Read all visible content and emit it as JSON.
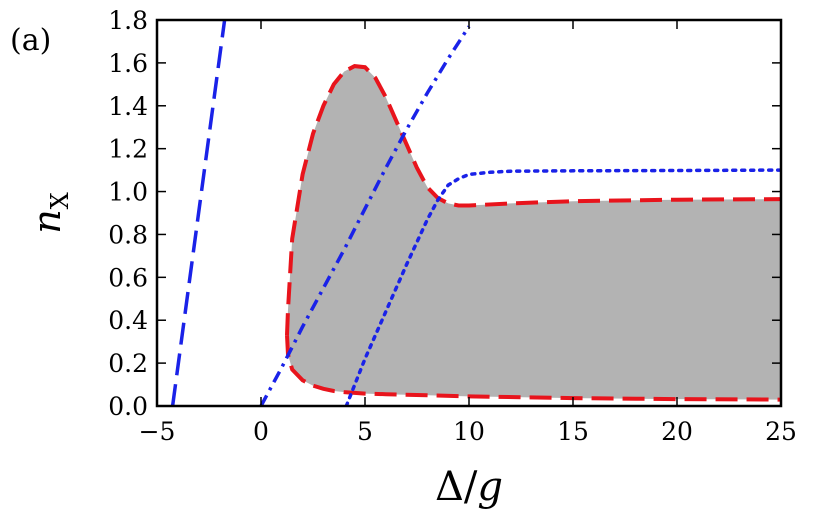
{
  "panel_label": "(a)",
  "chart_data": {
    "type": "area",
    "xlabel": "Δ/g",
    "ylabel": "n_X",
    "xlim": [
      -5,
      25
    ],
    "ylim": [
      0,
      1.8
    ],
    "xticks": [
      -5,
      0,
      5,
      10,
      15,
      20,
      25
    ],
    "xtick_labels": [
      "−5",
      "0",
      "5",
      "10",
      "15",
      "20",
      "25"
    ],
    "yticks": [
      0.0,
      0.2,
      0.4,
      0.6,
      0.8,
      1.0,
      1.2,
      1.4,
      1.6,
      1.8
    ],
    "ytick_labels": [
      "0.0",
      "0.2",
      "0.4",
      "0.6",
      "0.8",
      "1.0",
      "1.2",
      "1.4",
      "1.6",
      "1.8"
    ],
    "grid": false,
    "series": [
      {
        "style": "filled-region",
        "color": "#b3b3b3",
        "upper": {
          "x": [
            1.25,
            1.3,
            1.5,
            2.0,
            2.5,
            3.0,
            3.5,
            4.0,
            4.5,
            5.0,
            5.5,
            6.0,
            6.5,
            7.0,
            7.5,
            8.0,
            8.5,
            9.0,
            9.5,
            10.0,
            12.0,
            15.0,
            20.0,
            25.0
          ],
          "y": [
            0.33,
            0.45,
            0.78,
            1.08,
            1.27,
            1.4,
            1.5,
            1.56,
            1.585,
            1.58,
            1.53,
            1.44,
            1.33,
            1.22,
            1.11,
            1.02,
            0.97,
            0.945,
            0.935,
            0.935,
            0.945,
            0.955,
            0.962,
            0.965
          ]
        },
        "lower": {
          "x": [
            1.25,
            1.3,
            1.5,
            2.0,
            2.5,
            3.0,
            3.5,
            4.0,
            5.0,
            6.0,
            8.0,
            10.0,
            15.0,
            20.0,
            25.0
          ],
          "y": [
            0.33,
            0.24,
            0.17,
            0.12,
            0.095,
            0.08,
            0.07,
            0.065,
            0.058,
            0.055,
            0.05,
            0.045,
            0.037,
            0.032,
            0.03
          ]
        }
      },
      {
        "style": "dashed",
        "color": "#e8141c",
        "x": [
          1.25,
          1.3,
          1.5,
          2.0,
          2.5,
          3.0,
          3.5,
          4.0,
          4.5,
          5.0,
          5.5,
          6.0,
          6.5,
          7.0,
          7.5,
          8.0,
          8.5,
          9.0,
          9.5,
          10.0,
          12.0,
          15.0,
          20.0,
          25.0
        ],
        "y": [
          0.33,
          0.45,
          0.78,
          1.08,
          1.27,
          1.4,
          1.5,
          1.56,
          1.585,
          1.58,
          1.53,
          1.44,
          1.33,
          1.22,
          1.11,
          1.02,
          0.97,
          0.945,
          0.935,
          0.935,
          0.945,
          0.955,
          0.962,
          0.965
        ]
      },
      {
        "style": "dashed",
        "color": "#e8141c",
        "x": [
          1.25,
          1.3,
          1.5,
          2.0,
          2.5,
          3.0,
          3.5,
          4.0,
          5.0,
          6.0,
          8.0,
          10.0,
          15.0,
          20.0,
          25.0
        ],
        "y": [
          0.33,
          0.24,
          0.17,
          0.12,
          0.095,
          0.08,
          0.07,
          0.065,
          0.058,
          0.055,
          0.05,
          0.045,
          0.037,
          0.032,
          0.03
        ]
      },
      {
        "style": "dashed",
        "color": "#1a22e8",
        "x": [
          -4.25,
          -1.75
        ],
        "y": [
          0.0,
          1.8
        ]
      },
      {
        "style": "dashdot",
        "color": "#1a22e8",
        "x": [
          0.0,
          1.0,
          2.0,
          3.0,
          4.0,
          5.0,
          6.0,
          7.0,
          8.0,
          9.0,
          10.0
        ],
        "y": [
          0.0,
          0.18,
          0.37,
          0.55,
          0.73,
          0.92,
          1.11,
          1.29,
          1.46,
          1.62,
          1.77
        ]
      },
      {
        "style": "dotted",
        "color": "#1a22e8",
        "x": [
          4.1,
          5.0,
          6.0,
          7.0,
          8.0,
          8.5,
          9.0,
          9.5,
          10.0,
          11.0,
          12.0,
          15.0,
          20.0,
          25.0
        ],
        "y": [
          0.0,
          0.22,
          0.44,
          0.66,
          0.87,
          0.96,
          1.03,
          1.06,
          1.08,
          1.09,
          1.095,
          1.097,
          1.098,
          1.1
        ]
      }
    ]
  }
}
